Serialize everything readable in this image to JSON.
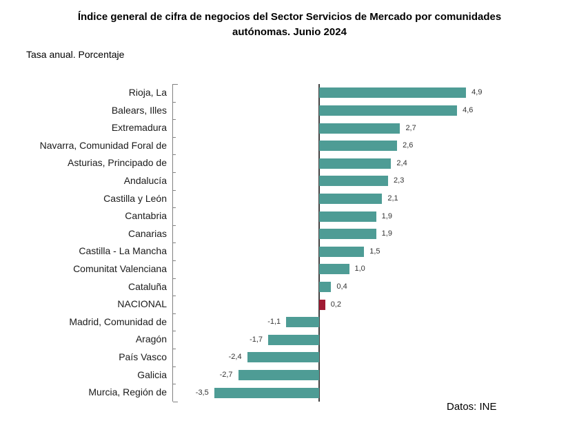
{
  "title": "Índice general de cifra de negocios del Sector Servicios de Mercado por comunidades autónomas. Junio 2024",
  "subtitle": "Tasa anual. Porcentaje",
  "source": "Datos: INE",
  "chart_data": {
    "type": "bar",
    "orientation": "horizontal",
    "title": "Índice general de cifra de negocios del Sector Servicios de Mercado por comunidades autónomas. Junio 2024",
    "subtitle": "Tasa anual. Porcentaje",
    "unit": "%",
    "grid": false,
    "legend": false,
    "xlim": [
      -5,
      5
    ],
    "categories": [
      "Rioja, La",
      "Balears, Illes",
      "Extremadura",
      "Navarra, Comunidad Foral de",
      "Asturias, Principado de",
      "Andalucía",
      "Castilla y León",
      "Cantabria",
      "Canarias",
      "Castilla - La Mancha",
      "Comunitat Valenciana",
      "Cataluña",
      "NACIONAL",
      "Madrid, Comunidad de",
      "Aragón",
      "País Vasco",
      "Galicia",
      "Murcia, Región de"
    ],
    "values": [
      4.9,
      4.6,
      2.7,
      2.6,
      2.4,
      2.3,
      2.1,
      1.9,
      1.9,
      1.5,
      1.0,
      0.4,
      0.2,
      -1.1,
      -1.7,
      -2.4,
      -2.7,
      -3.5
    ],
    "value_labels": [
      "4,9",
      "4,6",
      "2,7",
      "2,6",
      "2,4",
      "2,3",
      "2,1",
      "1,9",
      "1,9",
      "1,5",
      "1,0",
      "0,4",
      "0,2",
      "-1,1",
      "-1,7",
      "-2,4",
      "-2,7",
      "-3,5"
    ],
    "highlight_category": "NACIONAL",
    "highlight_index": 12,
    "colors": {
      "bar": "#4E9C95",
      "highlight": "#A01B33",
      "axis": "#808080",
      "zero_line": "#404040",
      "value_text": "#333333",
      "label_text": "#1a1a1a"
    }
  }
}
